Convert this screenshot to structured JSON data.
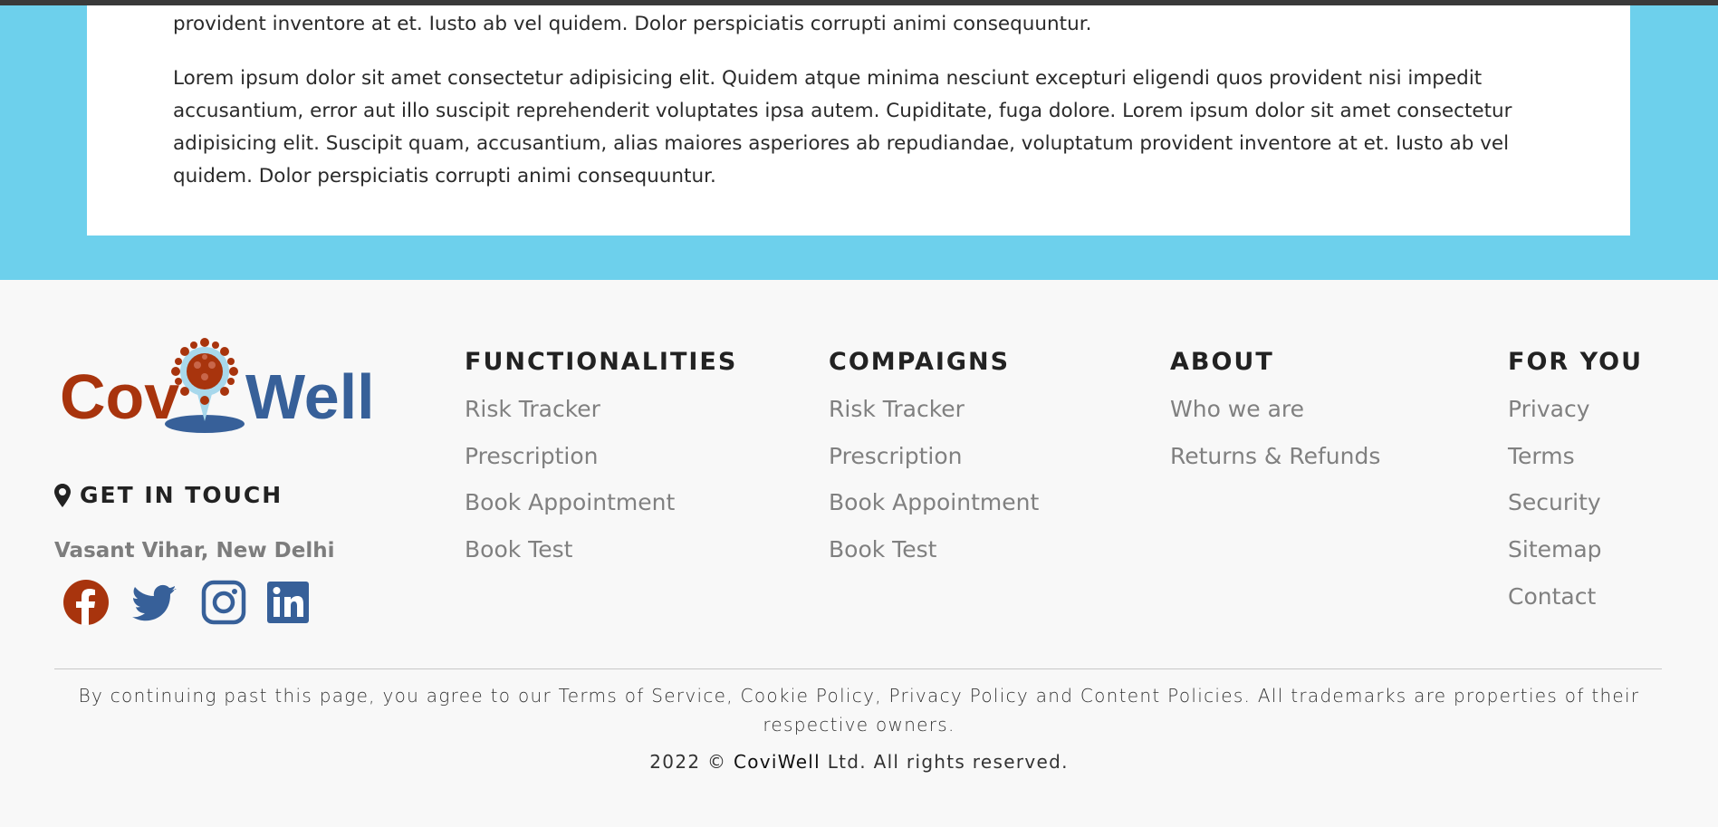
{
  "content": {
    "paragraph_tail": "provident inventore at et. Iusto ab vel quidem. Dolor perspiciatis corrupti animi consequuntur.",
    "paragraph": "Lorem ipsum dolor sit amet consectetur adipisicing elit. Quidem atque minima nesciunt excepturi eligendi quos provident nisi impedit accusantium, error aut illo suscipit reprehenderit voluptates ipsa autem. Cupiditate, fuga dolore. Lorem ipsum dolor sit amet consectetur adipisicing elit. Suscipit quam, accusantium, alias maiores asperiores ab repudiandae, voluptatum provident inventore at et. Iusto ab vel quidem. Dolor perspiciatis corrupti animi consequuntur."
  },
  "footer": {
    "logo": {
      "text_left": "Cov",
      "text_right": "Well"
    },
    "get_in_touch": "GET IN TOUCH",
    "address": "Vasant Vihar, New Delhi",
    "social": [
      "facebook-icon",
      "twitter-icon",
      "instagram-icon",
      "linkedin-icon"
    ],
    "columns": [
      {
        "title": "FUNCTIONALITIES",
        "links": [
          "Risk Tracker",
          "Prescription",
          "Book Appointment",
          "Book Test"
        ]
      },
      {
        "title": "COMPAIGNS",
        "links": [
          "Risk Tracker",
          "Prescription",
          "Book Appointment",
          "Book Test"
        ]
      },
      {
        "title": "ABOUT",
        "links": [
          "Who we are",
          "Returns & Refunds"
        ]
      },
      {
        "title": "FOR YOU",
        "links": [
          "Privacy",
          "Terms",
          "Security",
          "Sitemap",
          "Contact"
        ]
      }
    ],
    "legal": "By continuing past this page, you agree to our Terms of Service, Cookie Policy, Privacy Policy and Content Policies. All trademarks are properties of their respective owners.",
    "copyright_prefix": "2022 ©",
    "copyright_brand": "CoviWell",
    "copyright_suffix": "Ltd. All rights reserved."
  },
  "colors": {
    "hero_bg": "#6dd0ec",
    "brand_red": "#a8340d",
    "brand_blue": "#376099",
    "footer_bg": "#f8f8f8"
  }
}
